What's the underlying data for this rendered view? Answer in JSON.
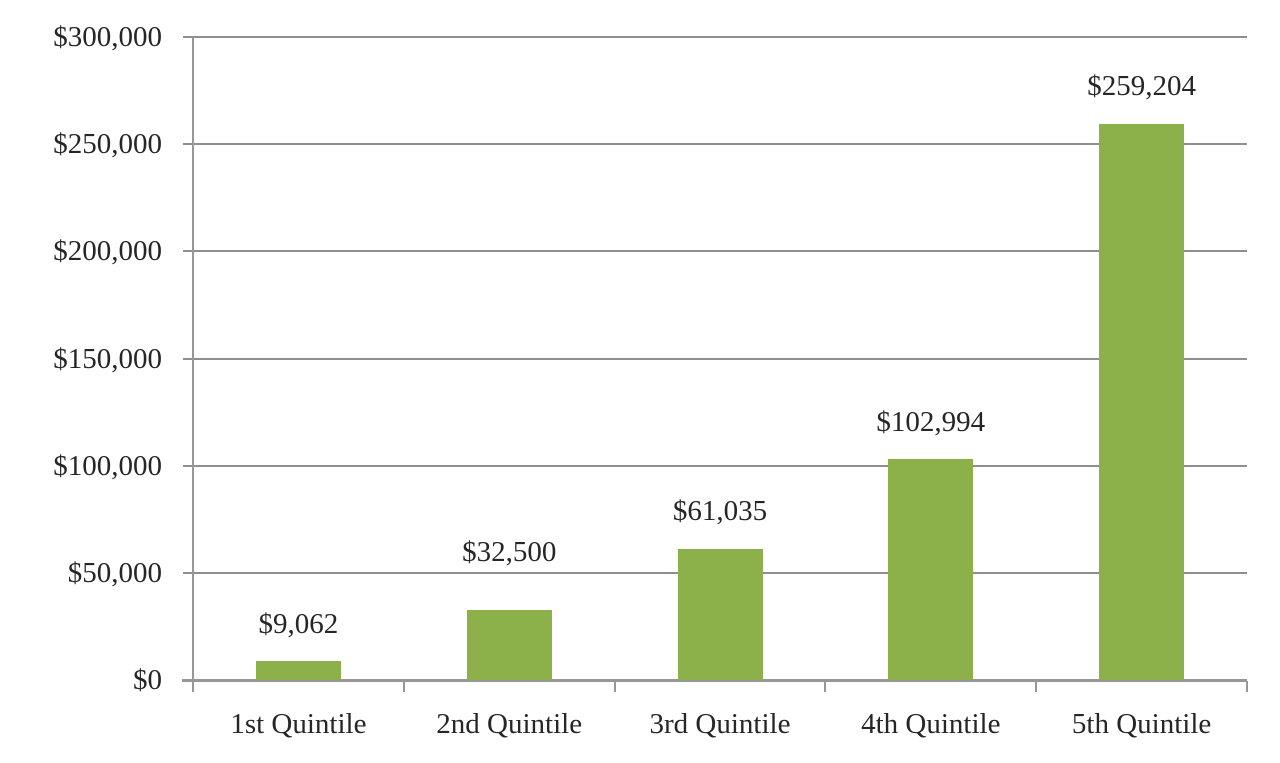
{
  "chart_data": {
    "type": "bar",
    "title": "",
    "xlabel": "",
    "ylabel": "",
    "categories": [
      "1st Quintile",
      "2nd Quintile",
      "3rd Quintile",
      "4th Quintile",
      "5th Quintile"
    ],
    "values": [
      9062,
      32500,
      61035,
      102994,
      259204
    ],
    "data_labels": [
      "$9,062",
      "$32,500",
      "$61,035",
      "$102,994",
      "$259,204"
    ],
    "series": [
      {
        "name": "",
        "values": [
          9062,
          32500,
          61035,
          102994,
          259204
        ]
      }
    ],
    "y_ticks": [
      {
        "value": 300000,
        "label": "$300,000"
      },
      {
        "value": 250000,
        "label": "$250,000"
      },
      {
        "value": 200000,
        "label": "$200,000"
      },
      {
        "value": 150000,
        "label": "$150,000"
      },
      {
        "value": 100000,
        "label": "$100,000"
      },
      {
        "value": 50000,
        "label": "$50,000"
      },
      {
        "value": 0,
        "label": "$0"
      }
    ],
    "ylim": [
      0,
      300000
    ],
    "y_tick_step": 50000,
    "grid": "horizontal-on",
    "legend": "none",
    "colors": {
      "bar_fill": "#8CB14A",
      "gridline": "#8F8F8F",
      "axis": "#979797",
      "text": "#262626",
      "background": "#FFFFFF"
    }
  }
}
